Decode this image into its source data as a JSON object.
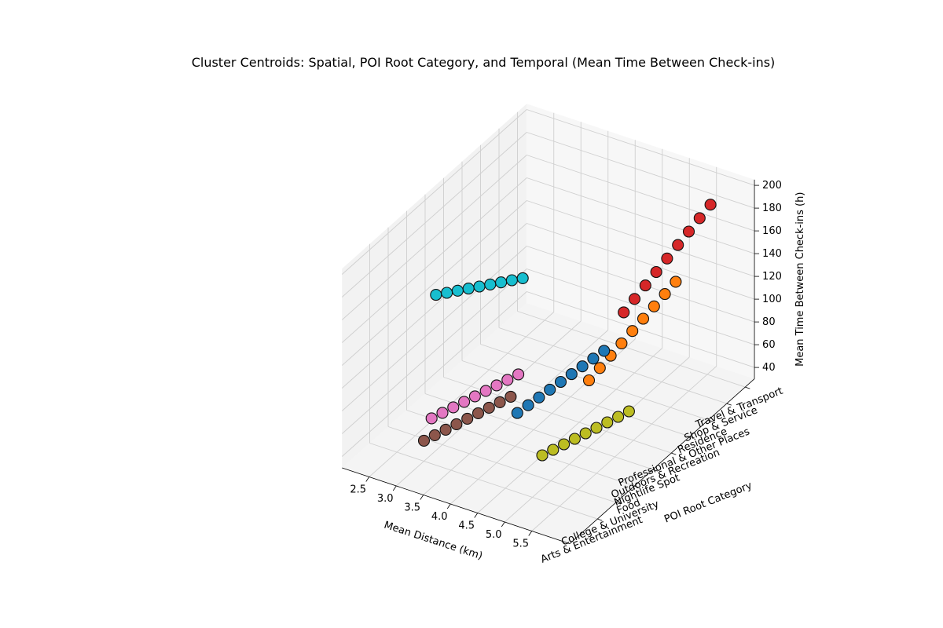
{
  "chart_data": {
    "type": "scatter3d",
    "title": "Cluster Centroids: Spatial, POI Root Category, and Temporal (Mean Time Between Check-ins)",
    "xlabel": "Mean Distance (km)",
    "ylabel": "POI Root Category",
    "zlabel": "Mean Time Between Check-ins (h)",
    "xlim": [
      2.5,
      5.5
    ],
    "zlim": [
      30,
      205
    ],
    "x_ticks": [
      "2.5",
      "3.0",
      "3.5",
      "4.0",
      "4.5",
      "5.0",
      "5.5"
    ],
    "y_ticks": [
      "Arts & Entertainment",
      "College & University",
      "Food",
      "Nightlife Spot",
      "Outdoors & Recreation",
      "Professional & Other Places",
      "Residence",
      "Shop & Service",
      "Travel & Transport"
    ],
    "z_ticks": [
      "40",
      "60",
      "80",
      "100",
      "120",
      "140",
      "160",
      "180",
      "200"
    ],
    "grid": true,
    "colors": {
      "blue": "#1f77b4",
      "orange": "#ff7f0e",
      "red": "#d62728",
      "olive": "#bcbd22",
      "pink": "#e377c2",
      "brown": "#8c564b",
      "cyan": "#17becf"
    },
    "series": [
      {
        "color": "blue",
        "x": [
          3.7,
          3.9,
          4.1,
          4.3,
          4.5,
          4.7,
          4.9,
          5.1,
          5.3
        ],
        "y_category": [
          3,
          3,
          3,
          3,
          3,
          3,
          3,
          3,
          3
        ],
        "z": [
          40,
          50,
          60,
          70,
          80,
          90,
          100,
          110,
          120
        ]
      },
      {
        "color": "orange",
        "x": [
          4.0,
          4.2,
          4.4,
          4.6,
          4.8,
          5.0,
          5.2,
          5.4,
          5.6
        ],
        "y_category": [
          6,
          6,
          6,
          6,
          6,
          6,
          6,
          6,
          6
        ],
        "z": [
          30,
          44,
          58,
          72,
          86,
          100,
          114,
          128,
          142
        ]
      },
      {
        "color": "red",
        "x": [
          4.3,
          4.5,
          4.7,
          4.9,
          5.1,
          5.3,
          5.5,
          5.7,
          5.9
        ],
        "y_category": [
          7,
          7,
          7,
          7,
          7,
          7,
          7,
          7,
          7
        ],
        "z": [
          80,
          95,
          110,
          125,
          140,
          155,
          170,
          185,
          200
        ]
      },
      {
        "color": "olive",
        "x": [
          4.5,
          4.7,
          4.9,
          5.1,
          5.3,
          5.5,
          5.7,
          5.9,
          6.1
        ],
        "y_category": [
          2,
          2,
          2,
          2,
          2,
          2,
          2,
          2,
          2
        ],
        "z": [
          30,
          38,
          46,
          54,
          62,
          70,
          78,
          86,
          94
        ]
      },
      {
        "color": "pink",
        "x": [
          2.8,
          3.0,
          3.2,
          3.4,
          3.6,
          3.8,
          4.0,
          4.2,
          4.4
        ],
        "y_category": [
          1,
          1,
          1,
          1,
          1,
          1,
          1,
          1,
          1
        ],
        "z": [
          50,
          58,
          66,
          74,
          82,
          90,
          98,
          106,
          114
        ]
      },
      {
        "color": "brown",
        "x": [
          3.0,
          3.2,
          3.4,
          3.6,
          3.8,
          4.0,
          4.2,
          4.4,
          4.6
        ],
        "y_category": [
          0,
          0,
          0,
          0,
          0,
          0,
          0,
          0,
          0
        ],
        "z": [
          48,
          56,
          64,
          72,
          80,
          88,
          96,
          104,
          112
        ]
      },
      {
        "color": "cyan",
        "x": [
          2.2,
          2.4,
          2.6,
          2.8,
          3.0,
          3.2,
          3.4,
          3.6,
          3.8
        ],
        "y_category": [
          3,
          3,
          3,
          3,
          3,
          3,
          3,
          3,
          3
        ],
        "z": [
          120,
          125,
          130,
          135,
          140,
          145,
          150,
          155,
          160
        ]
      }
    ]
  }
}
